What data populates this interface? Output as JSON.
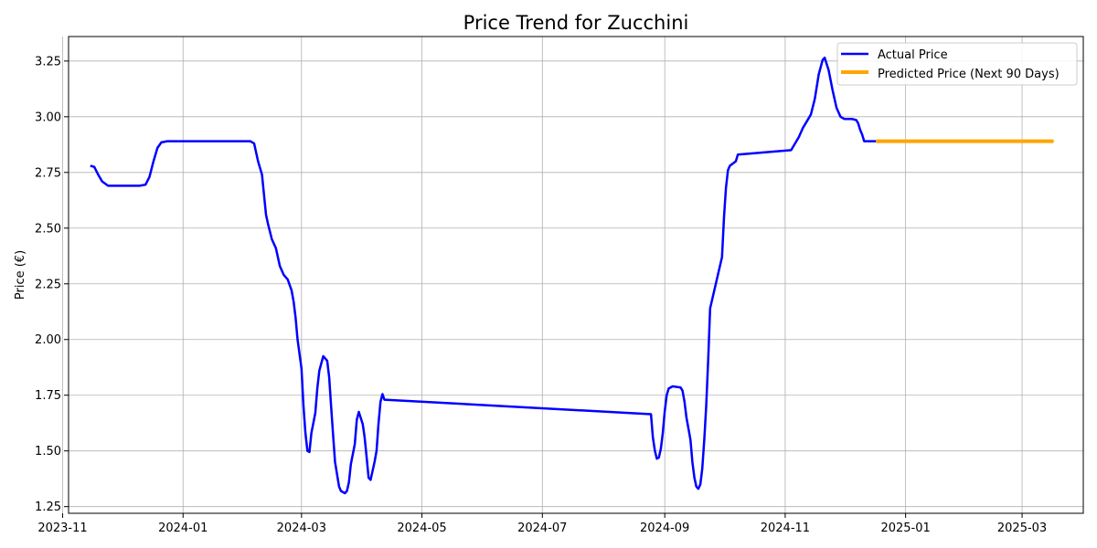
{
  "chart_data": {
    "type": "line",
    "title": "Price Trend for Zucchini",
    "xlabel": "",
    "ylabel": "Price (€)",
    "x_type": "date",
    "xlim": [
      "2023-11-04",
      "2025-04-01"
    ],
    "ylim": [
      1.22,
      3.36
    ],
    "x_ticks": [
      "2023-11-01",
      "2024-01-01",
      "2024-03-01",
      "2024-05-01",
      "2024-07-01",
      "2024-09-01",
      "2024-11-01",
      "2025-01-01",
      "2025-03-01"
    ],
    "x_tick_labels": [
      "2023-11",
      "2024-01",
      "2024-03",
      "2024-05",
      "2024-07",
      "2024-09",
      "2024-11",
      "2025-01",
      "2025-03"
    ],
    "y_ticks": [
      1.25,
      1.5,
      1.75,
      2.0,
      2.25,
      2.5,
      2.75,
      3.0,
      3.25
    ],
    "y_tick_labels": [
      "1.25",
      "1.50",
      "1.75",
      "2.00",
      "2.25",
      "2.50",
      "2.75",
      "3.00",
      "3.25"
    ],
    "grid": true,
    "legend_position": "top-right",
    "series": [
      {
        "name": "Actual Price",
        "color": "#0000ff",
        "points": [
          [
            "2023-11-15",
            2.78
          ],
          [
            "2023-11-17",
            2.775
          ],
          [
            "2023-11-19",
            2.74
          ],
          [
            "2023-11-21",
            2.71
          ],
          [
            "2023-11-24",
            2.69
          ],
          [
            "2023-12-01",
            2.69
          ],
          [
            "2023-12-10",
            2.69
          ],
          [
            "2023-12-13",
            2.695
          ],
          [
            "2023-12-15",
            2.73
          ],
          [
            "2023-12-17",
            2.8
          ],
          [
            "2023-12-19",
            2.86
          ],
          [
            "2023-12-21",
            2.885
          ],
          [
            "2023-12-24",
            2.89
          ],
          [
            "2024-01-15",
            2.89
          ],
          [
            "2024-02-04",
            2.89
          ],
          [
            "2024-02-06",
            2.88
          ],
          [
            "2024-02-08",
            2.8
          ],
          [
            "2024-02-10",
            2.74
          ],
          [
            "2024-02-11",
            2.65
          ],
          [
            "2024-02-12",
            2.56
          ],
          [
            "2024-02-13",
            2.52
          ],
          [
            "2024-02-15",
            2.45
          ],
          [
            "2024-02-17",
            2.41
          ],
          [
            "2024-02-19",
            2.33
          ],
          [
            "2024-02-21",
            2.29
          ],
          [
            "2024-02-23",
            2.27
          ],
          [
            "2024-02-25",
            2.22
          ],
          [
            "2024-02-26",
            2.17
          ],
          [
            "2024-02-27",
            2.1
          ],
          [
            "2024-02-28",
            2.0
          ],
          [
            "2024-03-01",
            1.87
          ],
          [
            "2024-03-02",
            1.7
          ],
          [
            "2024-03-03",
            1.58
          ],
          [
            "2024-03-04",
            1.5
          ],
          [
            "2024-03-05",
            1.495
          ],
          [
            "2024-03-06",
            1.58
          ],
          [
            "2024-03-08",
            1.67
          ],
          [
            "2024-03-09",
            1.78
          ],
          [
            "2024-03-10",
            1.86
          ],
          [
            "2024-03-12",
            1.925
          ],
          [
            "2024-03-14",
            1.905
          ],
          [
            "2024-03-15",
            1.83
          ],
          [
            "2024-03-16",
            1.7
          ],
          [
            "2024-03-17",
            1.57
          ],
          [
            "2024-03-18",
            1.45
          ],
          [
            "2024-03-20",
            1.34
          ],
          [
            "2024-03-21",
            1.32
          ],
          [
            "2024-03-23",
            1.31
          ],
          [
            "2024-03-24",
            1.32
          ],
          [
            "2024-03-25",
            1.36
          ],
          [
            "2024-03-26",
            1.44
          ],
          [
            "2024-03-28",
            1.53
          ],
          [
            "2024-03-29",
            1.64
          ],
          [
            "2024-03-30",
            1.675
          ],
          [
            "2024-04-01",
            1.62
          ],
          [
            "2024-04-02",
            1.56
          ],
          [
            "2024-04-03",
            1.47
          ],
          [
            "2024-04-04",
            1.38
          ],
          [
            "2024-04-05",
            1.37
          ],
          [
            "2024-04-07",
            1.45
          ],
          [
            "2024-04-08",
            1.5
          ],
          [
            "2024-04-09",
            1.62
          ],
          [
            "2024-04-10",
            1.72
          ],
          [
            "2024-04-11",
            1.755
          ],
          [
            "2024-04-12",
            1.73
          ],
          [
            "2024-08-25",
            1.665
          ],
          [
            "2024-08-26",
            1.56
          ],
          [
            "2024-08-27",
            1.5
          ],
          [
            "2024-08-28",
            1.465
          ],
          [
            "2024-08-29",
            1.47
          ],
          [
            "2024-08-30",
            1.51
          ],
          [
            "2024-08-31",
            1.58
          ],
          [
            "2024-09-01",
            1.68
          ],
          [
            "2024-09-02",
            1.75
          ],
          [
            "2024-09-03",
            1.78
          ],
          [
            "2024-09-05",
            1.79
          ],
          [
            "2024-09-09",
            1.785
          ],
          [
            "2024-09-10",
            1.77
          ],
          [
            "2024-09-11",
            1.72
          ],
          [
            "2024-09-12",
            1.65
          ],
          [
            "2024-09-14",
            1.55
          ],
          [
            "2024-09-15",
            1.45
          ],
          [
            "2024-09-16",
            1.38
          ],
          [
            "2024-09-17",
            1.34
          ],
          [
            "2024-09-18",
            1.33
          ],
          [
            "2024-09-19",
            1.35
          ],
          [
            "2024-09-20",
            1.42
          ],
          [
            "2024-09-21",
            1.55
          ],
          [
            "2024-09-22",
            1.7
          ],
          [
            "2024-09-23",
            1.91
          ],
          [
            "2024-09-24",
            2.14
          ],
          [
            "2024-09-30",
            2.37
          ],
          [
            "2024-10-01",
            2.55
          ],
          [
            "2024-10-02",
            2.68
          ],
          [
            "2024-10-03",
            2.76
          ],
          [
            "2024-10-04",
            2.78
          ],
          [
            "2024-10-07",
            2.8
          ],
          [
            "2024-10-08",
            2.83
          ],
          [
            "2024-11-04",
            2.85
          ],
          [
            "2024-11-06",
            2.88
          ],
          [
            "2024-11-08",
            2.91
          ],
          [
            "2024-11-10",
            2.95
          ],
          [
            "2024-11-12",
            2.98
          ],
          [
            "2024-11-14",
            3.01
          ],
          [
            "2024-11-16",
            3.08
          ],
          [
            "2024-11-18",
            3.19
          ],
          [
            "2024-11-20",
            3.255
          ],
          [
            "2024-11-21",
            3.265
          ],
          [
            "2024-11-23",
            3.21
          ],
          [
            "2024-11-25",
            3.12
          ],
          [
            "2024-11-27",
            3.04
          ],
          [
            "2024-11-29",
            3.0
          ],
          [
            "2024-12-01",
            2.99
          ],
          [
            "2024-12-05",
            2.99
          ],
          [
            "2024-12-07",
            2.985
          ],
          [
            "2024-12-08",
            2.97
          ],
          [
            "2024-12-09",
            2.94
          ],
          [
            "2024-12-10",
            2.92
          ],
          [
            "2024-12-11",
            2.89
          ],
          [
            "2024-12-13",
            2.89
          ],
          [
            "2024-12-17",
            2.89
          ]
        ]
      },
      {
        "name": "Predicted Price (Next 90 Days)",
        "color": "#ffa500",
        "points": [
          [
            "2024-12-17",
            2.89
          ],
          [
            "2025-01-15",
            2.89
          ],
          [
            "2025-02-15",
            2.89
          ],
          [
            "2025-03-17",
            2.89
          ]
        ]
      }
    ]
  }
}
